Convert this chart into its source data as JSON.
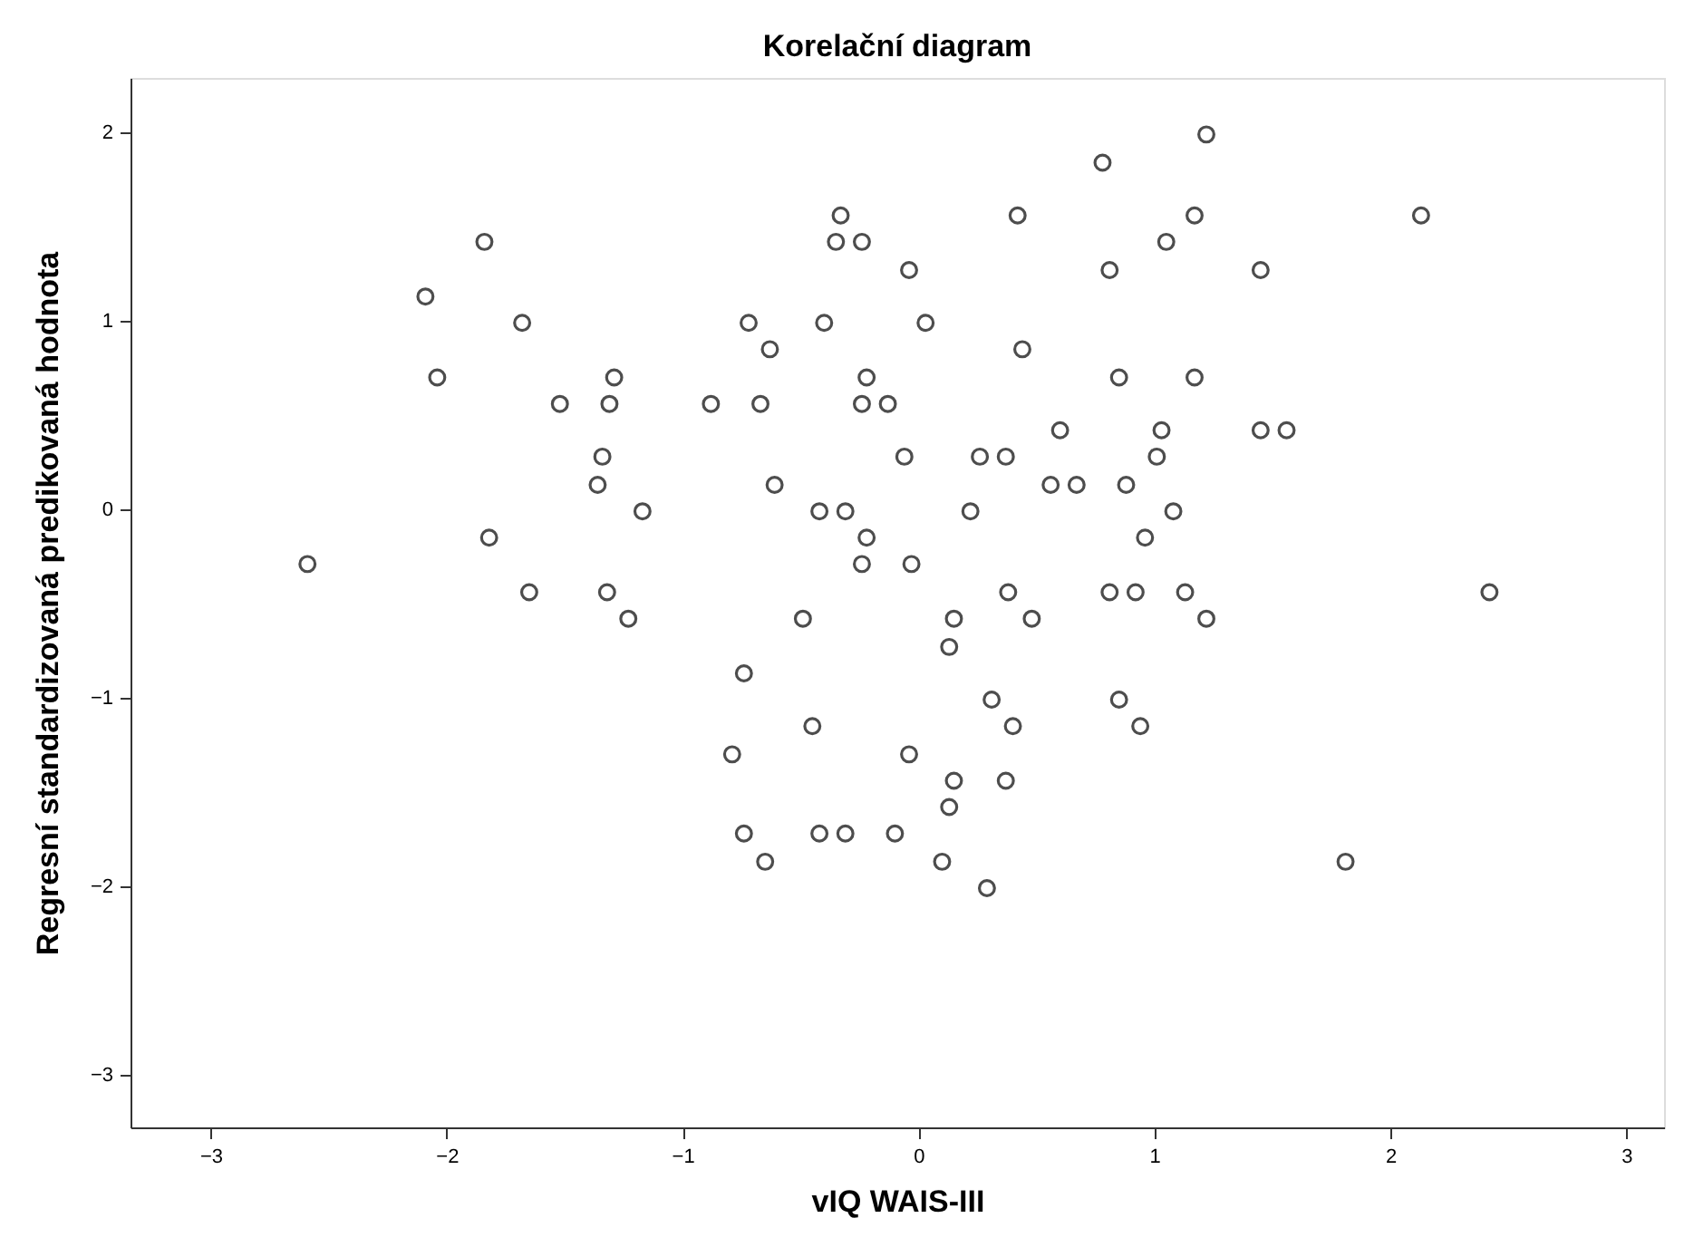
{
  "chart_data": {
    "type": "scatter",
    "title": "Korelační diagram",
    "xlabel": "vIQ WAIS-III",
    "ylabel": "Regresní standardizovaná predikovaná hodnota",
    "xlim": [
      -3.34,
      3.16
    ],
    "ylim": [
      -3.28,
      2.29
    ],
    "xticks": [
      -3,
      -2,
      -1,
      0,
      1,
      2,
      3
    ],
    "yticks": [
      -3,
      -2,
      -1,
      0,
      1,
      2
    ],
    "grid": false,
    "marker": "circle",
    "series": [
      {
        "color": "#4d4d4d",
        "x": [
          -0.33,
          -0.35,
          -0.24,
          -0.04,
          -1.84,
          -2.09,
          -1.68,
          -0.72,
          -0.4,
          0.03,
          -0.63,
          -2.04,
          -1.29,
          -0.22,
          -1.52,
          -1.31,
          -0.88,
          -0.67,
          -0.24,
          -0.13,
          -1.34,
          -0.06,
          0.26,
          0.37,
          -1.36,
          -0.61,
          -1.17,
          -0.42,
          -0.31,
          0.22,
          -1.82,
          -0.22,
          -2.59,
          -0.24,
          -0.03,
          -1.65,
          -1.32,
          1.22,
          0.78,
          0.42,
          1.17,
          2.13,
          1.05,
          0.81,
          1.45,
          0.44,
          0.85,
          1.17,
          0.6,
          1.03,
          1.45,
          1.56,
          1.01,
          0.56,
          0.67,
          0.88,
          1.08,
          0.96,
          0.38,
          0.81,
          0.92,
          1.13,
          2.42,
          -1.23,
          -0.49,
          0.15,
          0.13,
          -0.74,
          -0.45,
          -0.79,
          -0.04,
          0.15,
          0.13,
          -0.74,
          -0.42,
          -0.31,
          -0.1,
          -0.65,
          0.1,
          0.48,
          1.22,
          0.31,
          0.85,
          0.4,
          0.94,
          0.37,
          1.81,
          0.29
        ],
        "values": [
          1.56,
          1.42,
          1.42,
          1.27,
          1.42,
          1.13,
          0.99,
          0.99,
          0.99,
          0.99,
          0.85,
          0.7,
          0.7,
          0.7,
          0.56,
          0.56,
          0.56,
          0.56,
          0.56,
          0.56,
          0.28,
          0.28,
          0.28,
          0.28,
          0.13,
          0.13,
          -0.01,
          -0.01,
          -0.01,
          -0.01,
          -0.15,
          -0.15,
          -0.29,
          -0.29,
          -0.29,
          -0.44,
          -0.44,
          1.99,
          1.84,
          1.56,
          1.56,
          1.56,
          1.42,
          1.27,
          1.27,
          0.85,
          0.7,
          0.7,
          0.42,
          0.42,
          0.42,
          0.42,
          0.28,
          0.13,
          0.13,
          0.13,
          -0.01,
          -0.15,
          -0.44,
          -0.44,
          -0.44,
          -0.44,
          -0.44,
          -0.58,
          -0.58,
          -0.58,
          -0.73,
          -0.87,
          -1.15,
          -1.3,
          -1.3,
          -1.44,
          -1.58,
          -1.72,
          -1.72,
          -1.72,
          -1.72,
          -1.87,
          -1.87,
          -0.58,
          -0.58,
          -1.01,
          -1.01,
          -1.15,
          -1.15,
          -1.44,
          -1.87,
          -2.01
        ]
      }
    ]
  }
}
